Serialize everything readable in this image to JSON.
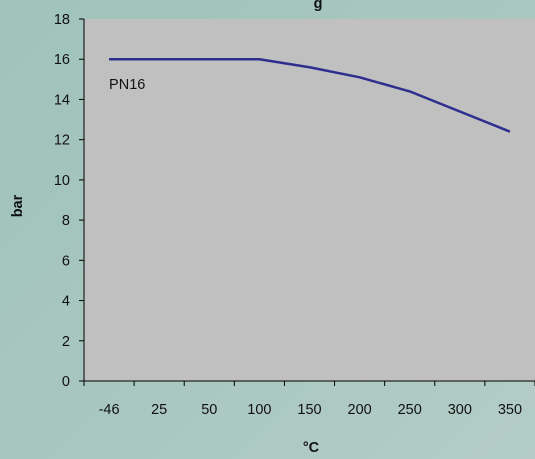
{
  "chart_data": {
    "type": "line",
    "title": "",
    "title_fragment": "g",
    "xlabel": "°C",
    "ylabel": "bar",
    "categories": [
      "-46",
      "25",
      "50",
      "100",
      "150",
      "200",
      "250",
      "300",
      "350"
    ],
    "series": [
      {
        "name": "PN16",
        "values": [
          16,
          16,
          16,
          16,
          15.6,
          15.1,
          14.4,
          13.4,
          12.4
        ]
      }
    ],
    "ylim": [
      0,
      18
    ],
    "yticks": [
      0,
      2,
      4,
      6,
      8,
      10,
      12,
      14,
      16,
      18
    ],
    "grid": false,
    "legend": "none",
    "colors": {
      "plot_area": "#c0c0c0",
      "series": "#2e2e8f",
      "axis": "#000000"
    }
  }
}
